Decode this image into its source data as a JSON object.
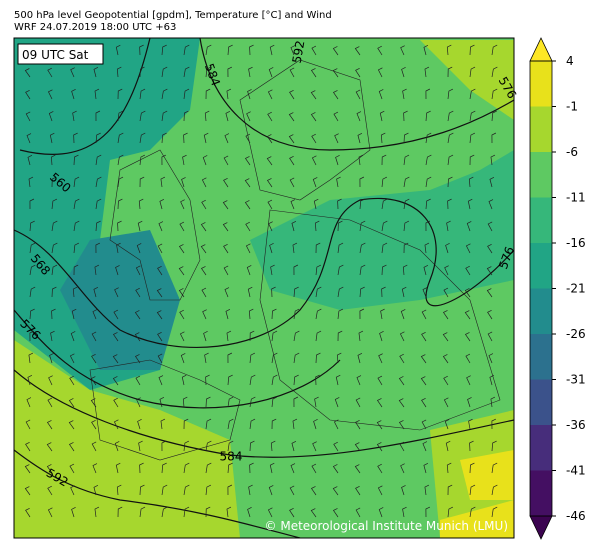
{
  "header": {
    "title": "500 hPa level Geopotential [gpdm], Temperature [°C] and Wind",
    "subtitle": "WRF 24.07.2019 18:00 UTC +63"
  },
  "map": {
    "time_label": "09 UTC Sat",
    "contour_labels": [
      "592",
      "584",
      "576",
      "560",
      "568",
      "576",
      "576",
      "584",
      "592"
    ],
    "credit": "© Meteorological Institute Munich (LMU)"
  },
  "colorbar": {
    "ticks": [
      4,
      -1,
      -6,
      -11,
      -16,
      -21,
      -26,
      -31,
      -36,
      -41,
      -46
    ],
    "colors": [
      "#e8e11b",
      "#a6d72e",
      "#5ec962",
      "#36b77a",
      "#21a585",
      "#228c8d",
      "#2c718e",
      "#3b528b",
      "#472d7b",
      "#440f62"
    ],
    "extend_colors": [
      "#fde725",
      "#3b0450"
    ]
  }
}
